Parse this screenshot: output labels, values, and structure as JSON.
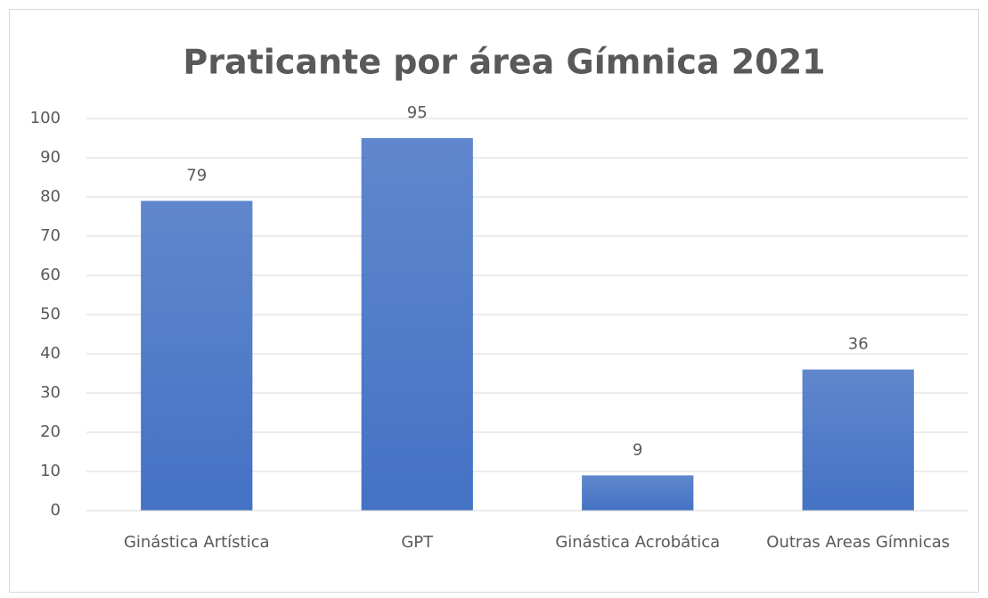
{
  "chart_data": {
    "type": "bar",
    "title": "Praticante por área Gímnica 2021",
    "categories": [
      "Ginástica Artística",
      "GPT",
      "Ginástica Acrobática",
      "Outras Areas Gímnicas"
    ],
    "values": [
      79,
      95,
      9,
      36
    ],
    "color": "#4472c4",
    "ylim": [
      0,
      100
    ],
    "yticks": [
      0,
      10,
      20,
      30,
      40,
      50,
      60,
      70,
      80,
      90,
      100
    ],
    "grid": true
  }
}
